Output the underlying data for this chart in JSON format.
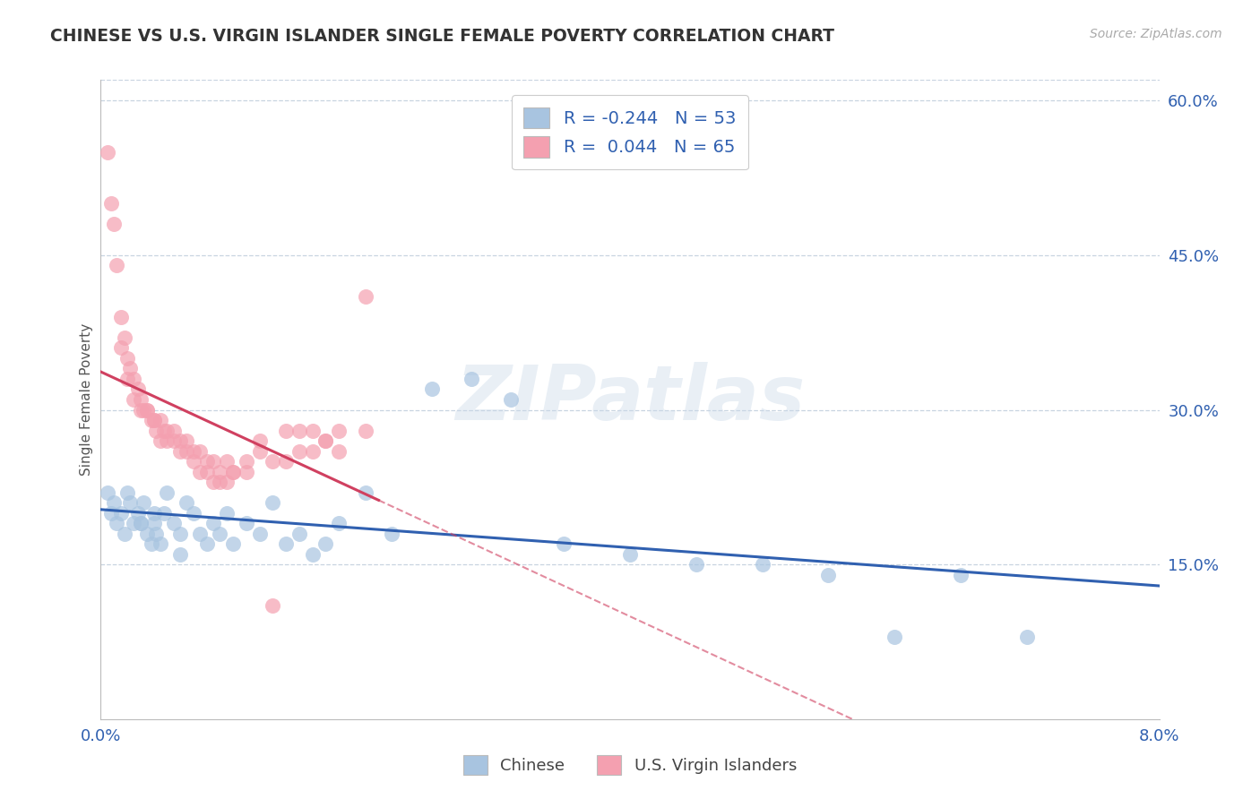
{
  "title": "CHINESE VS U.S. VIRGIN ISLANDER SINGLE FEMALE POVERTY CORRELATION CHART",
  "source": "Source: ZipAtlas.com",
  "ylabel": "Single Female Poverty",
  "xlim": [
    0.0,
    8.0
  ],
  "ylim": [
    0.0,
    62.0
  ],
  "yticks": [
    15.0,
    30.0,
    45.0,
    60.0
  ],
  "ytick_labels": [
    "15.0%",
    "30.0%",
    "45.0%",
    "60.0%"
  ],
  "xtick_vals": [
    0.0,
    8.0
  ],
  "xtick_labels": [
    "0.0%",
    "8.0%"
  ],
  "chinese_R": "-0.244",
  "chinese_N": "53",
  "virgin_R": "0.044",
  "virgin_N": "65",
  "chinese_fill": "#a8c4e0",
  "virgin_fill": "#f4a0b0",
  "chinese_line": "#3060b0",
  "virgin_line": "#d04060",
  "watermark": "ZIPatlas",
  "bg": "#ffffff",
  "grid_color": "#c8d4e0",
  "chinese_x": [
    0.05,
    0.08,
    0.1,
    0.12,
    0.15,
    0.18,
    0.2,
    0.22,
    0.25,
    0.28,
    0.3,
    0.32,
    0.35,
    0.38,
    0.4,
    0.42,
    0.45,
    0.48,
    0.5,
    0.55,
    0.6,
    0.65,
    0.7,
    0.75,
    0.8,
    0.85,
    0.9,
    0.95,
    1.0,
    1.1,
    1.2,
    1.3,
    1.4,
    1.5,
    1.6,
    1.7,
    1.8,
    2.0,
    2.2,
    2.5,
    2.8,
    3.1,
    3.5,
    4.0,
    4.5,
    5.0,
    5.5,
    6.0,
    6.5,
    7.0,
    0.3,
    0.4,
    0.6
  ],
  "chinese_y": [
    22,
    20,
    21,
    19,
    20,
    18,
    22,
    21,
    19,
    20,
    19,
    21,
    18,
    17,
    19,
    18,
    17,
    20,
    22,
    19,
    16,
    21,
    20,
    18,
    17,
    19,
    18,
    20,
    17,
    19,
    18,
    21,
    17,
    18,
    16,
    17,
    19,
    22,
    18,
    32,
    33,
    31,
    17,
    16,
    15,
    15,
    14,
    8,
    14,
    8,
    19,
    20,
    18
  ],
  "virgin_x": [
    0.05,
    0.08,
    0.1,
    0.12,
    0.15,
    0.18,
    0.2,
    0.22,
    0.25,
    0.28,
    0.3,
    0.32,
    0.35,
    0.38,
    0.4,
    0.42,
    0.45,
    0.48,
    0.5,
    0.55,
    0.6,
    0.65,
    0.7,
    0.75,
    0.8,
    0.85,
    0.9,
    0.95,
    1.0,
    1.1,
    1.2,
    1.3,
    1.4,
    1.5,
    1.6,
    1.7,
    1.8,
    2.0,
    0.15,
    0.2,
    0.25,
    0.3,
    0.35,
    0.4,
    0.45,
    0.5,
    0.55,
    0.6,
    0.65,
    0.7,
    0.75,
    0.8,
    0.85,
    0.9,
    0.95,
    1.0,
    1.1,
    1.2,
    1.3,
    1.4,
    1.5,
    1.6,
    1.7,
    1.8,
    2.0
  ],
  "virgin_y": [
    55,
    50,
    48,
    44,
    39,
    37,
    35,
    34,
    33,
    32,
    31,
    30,
    30,
    29,
    29,
    28,
    27,
    28,
    27,
    27,
    26,
    26,
    25,
    26,
    25,
    25,
    24,
    25,
    24,
    25,
    26,
    25,
    25,
    26,
    26,
    27,
    26,
    41,
    36,
    33,
    31,
    30,
    30,
    29,
    29,
    28,
    28,
    27,
    27,
    26,
    24,
    24,
    23,
    23,
    23,
    24,
    24,
    27,
    11,
    28,
    28,
    28,
    27,
    28,
    28
  ]
}
